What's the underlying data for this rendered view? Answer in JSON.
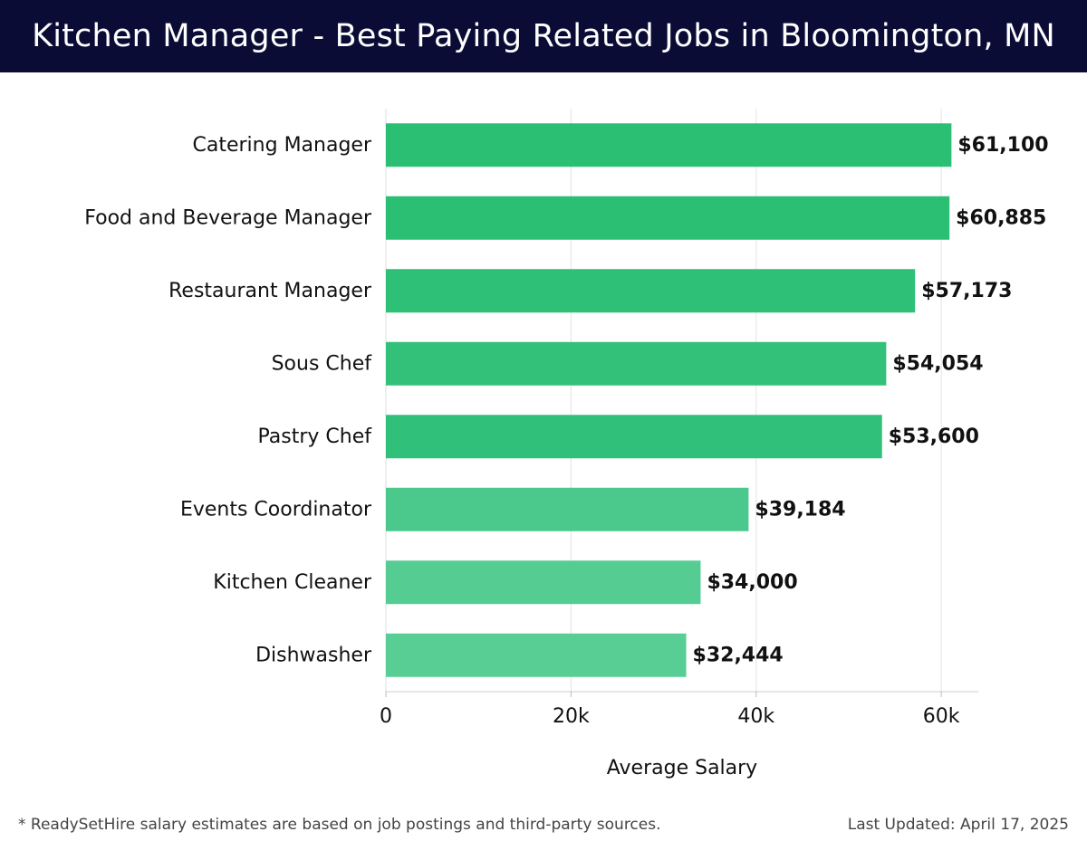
{
  "header": {
    "title": "Kitchen Manager - Best Paying Related Jobs in Bloomington, MN"
  },
  "chart_data": {
    "type": "bar",
    "orientation": "horizontal",
    "title": "Kitchen Manager - Best Paying Related Jobs in Bloomington, MN",
    "xlabel": "Average Salary",
    "ylabel": "",
    "xlim": [
      0,
      64000
    ],
    "x_ticks": [
      0,
      20000,
      40000,
      60000
    ],
    "x_tick_labels": [
      "0",
      "20k",
      "40k",
      "60k"
    ],
    "grid": "vertical",
    "categories": [
      "Catering Manager",
      "Food and Beverage Manager",
      "Restaurant Manager",
      "Sous Chef",
      "Pastry Chef",
      "Events Coordinator",
      "Kitchen Cleaner",
      "Dishwasher"
    ],
    "values": [
      61100,
      60885,
      57173,
      54054,
      53600,
      39184,
      34000,
      32444
    ],
    "value_labels": [
      "$61,100",
      "$60,885",
      "$57,173",
      "$54,054",
      "$53,600",
      "$39,184",
      "$34,000",
      "$32,444"
    ],
    "colors": [
      "#2bbf74",
      "#2bbf74",
      "#2fc077",
      "#33c17a",
      "#31c079",
      "#4bc88b",
      "#55cc91",
      "#58cd94"
    ]
  },
  "footer": {
    "note": "* ReadySetHire salary estimates are based on job postings and third-party sources.",
    "updated": "Last Updated: April 17, 2025"
  }
}
